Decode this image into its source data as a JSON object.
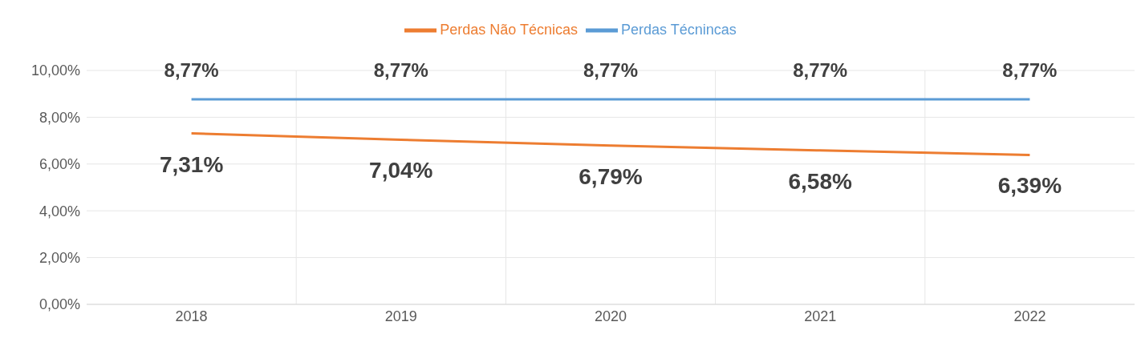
{
  "chart_data": {
    "type": "line",
    "categories": [
      "2018",
      "2019",
      "2020",
      "2021",
      "2022"
    ],
    "series": [
      {
        "name": "Perdas Técnincas",
        "color": "#5b9bd5",
        "values": [
          8.77,
          8.77,
          8.77,
          8.77,
          8.77
        ],
        "value_labels": [
          "8,77%",
          "8,77%",
          "8,77%",
          "8,77%",
          "8,77%"
        ]
      },
      {
        "name": "Perdas Não Técnicas",
        "color": "#ed7d31",
        "values": [
          7.31,
          7.04,
          6.79,
          6.58,
          6.39
        ],
        "value_labels": [
          "7,31%",
          "7,04%",
          "6,79%",
          "6,58%",
          "6,39%"
        ]
      }
    ],
    "ylim": [
      0,
      10
    ],
    "yticks": [
      {
        "value": 0,
        "label": "0,00%"
      },
      {
        "value": 2,
        "label": "2,00%"
      },
      {
        "value": 4,
        "label": "4,00%"
      },
      {
        "value": 6,
        "label": "6,00%"
      },
      {
        "value": 8,
        "label": "8,00%"
      },
      {
        "value": 10,
        "label": "10,00%"
      }
    ],
    "grid": true,
    "legend": "top",
    "marker": "none",
    "line_style": "solid"
  }
}
